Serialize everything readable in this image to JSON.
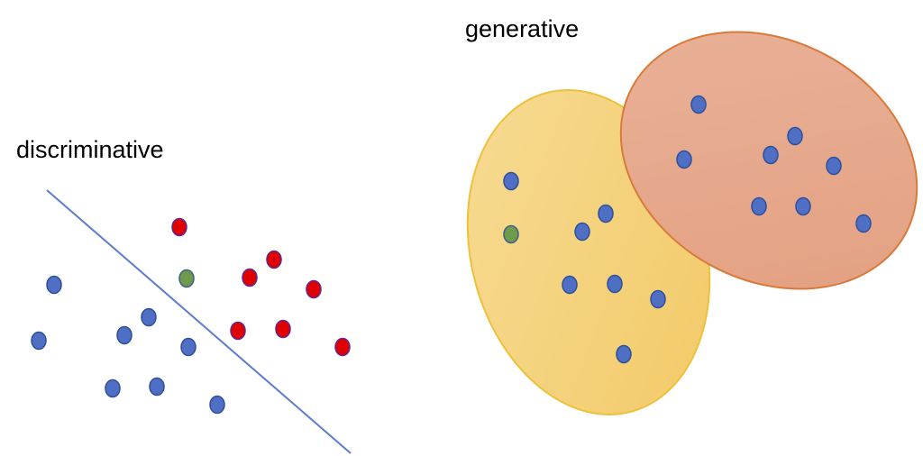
{
  "discriminative": {
    "title": "discriminative",
    "points": [
      {
        "cls": "blue"
      },
      {
        "cls": "blue"
      },
      {
        "cls": "blue"
      },
      {
        "cls": "blue"
      },
      {
        "cls": "blue"
      },
      {
        "cls": "blue"
      },
      {
        "cls": "blue"
      },
      {
        "cls": "blue"
      },
      {
        "cls": "red"
      },
      {
        "cls": "red"
      },
      {
        "cls": "red"
      },
      {
        "cls": "red"
      },
      {
        "cls": "red"
      },
      {
        "cls": "red"
      },
      {
        "cls": "red"
      },
      {
        "cls": "green"
      }
    ]
  },
  "generative": {
    "title": "generative",
    "regions": [
      {
        "name": "yellow-class-region",
        "fill": "#f5cf72",
        "stroke": "#eec13c"
      },
      {
        "name": "orange-class-region",
        "fill": "#e6a27f",
        "stroke": "#d97a3a"
      }
    ]
  },
  "colors": {
    "blue": "#4f6fc4",
    "red": "#e00000",
    "green": "#6e9a4c",
    "line": "#5b7bd0",
    "point_stroke": "#2f4f9a"
  }
}
